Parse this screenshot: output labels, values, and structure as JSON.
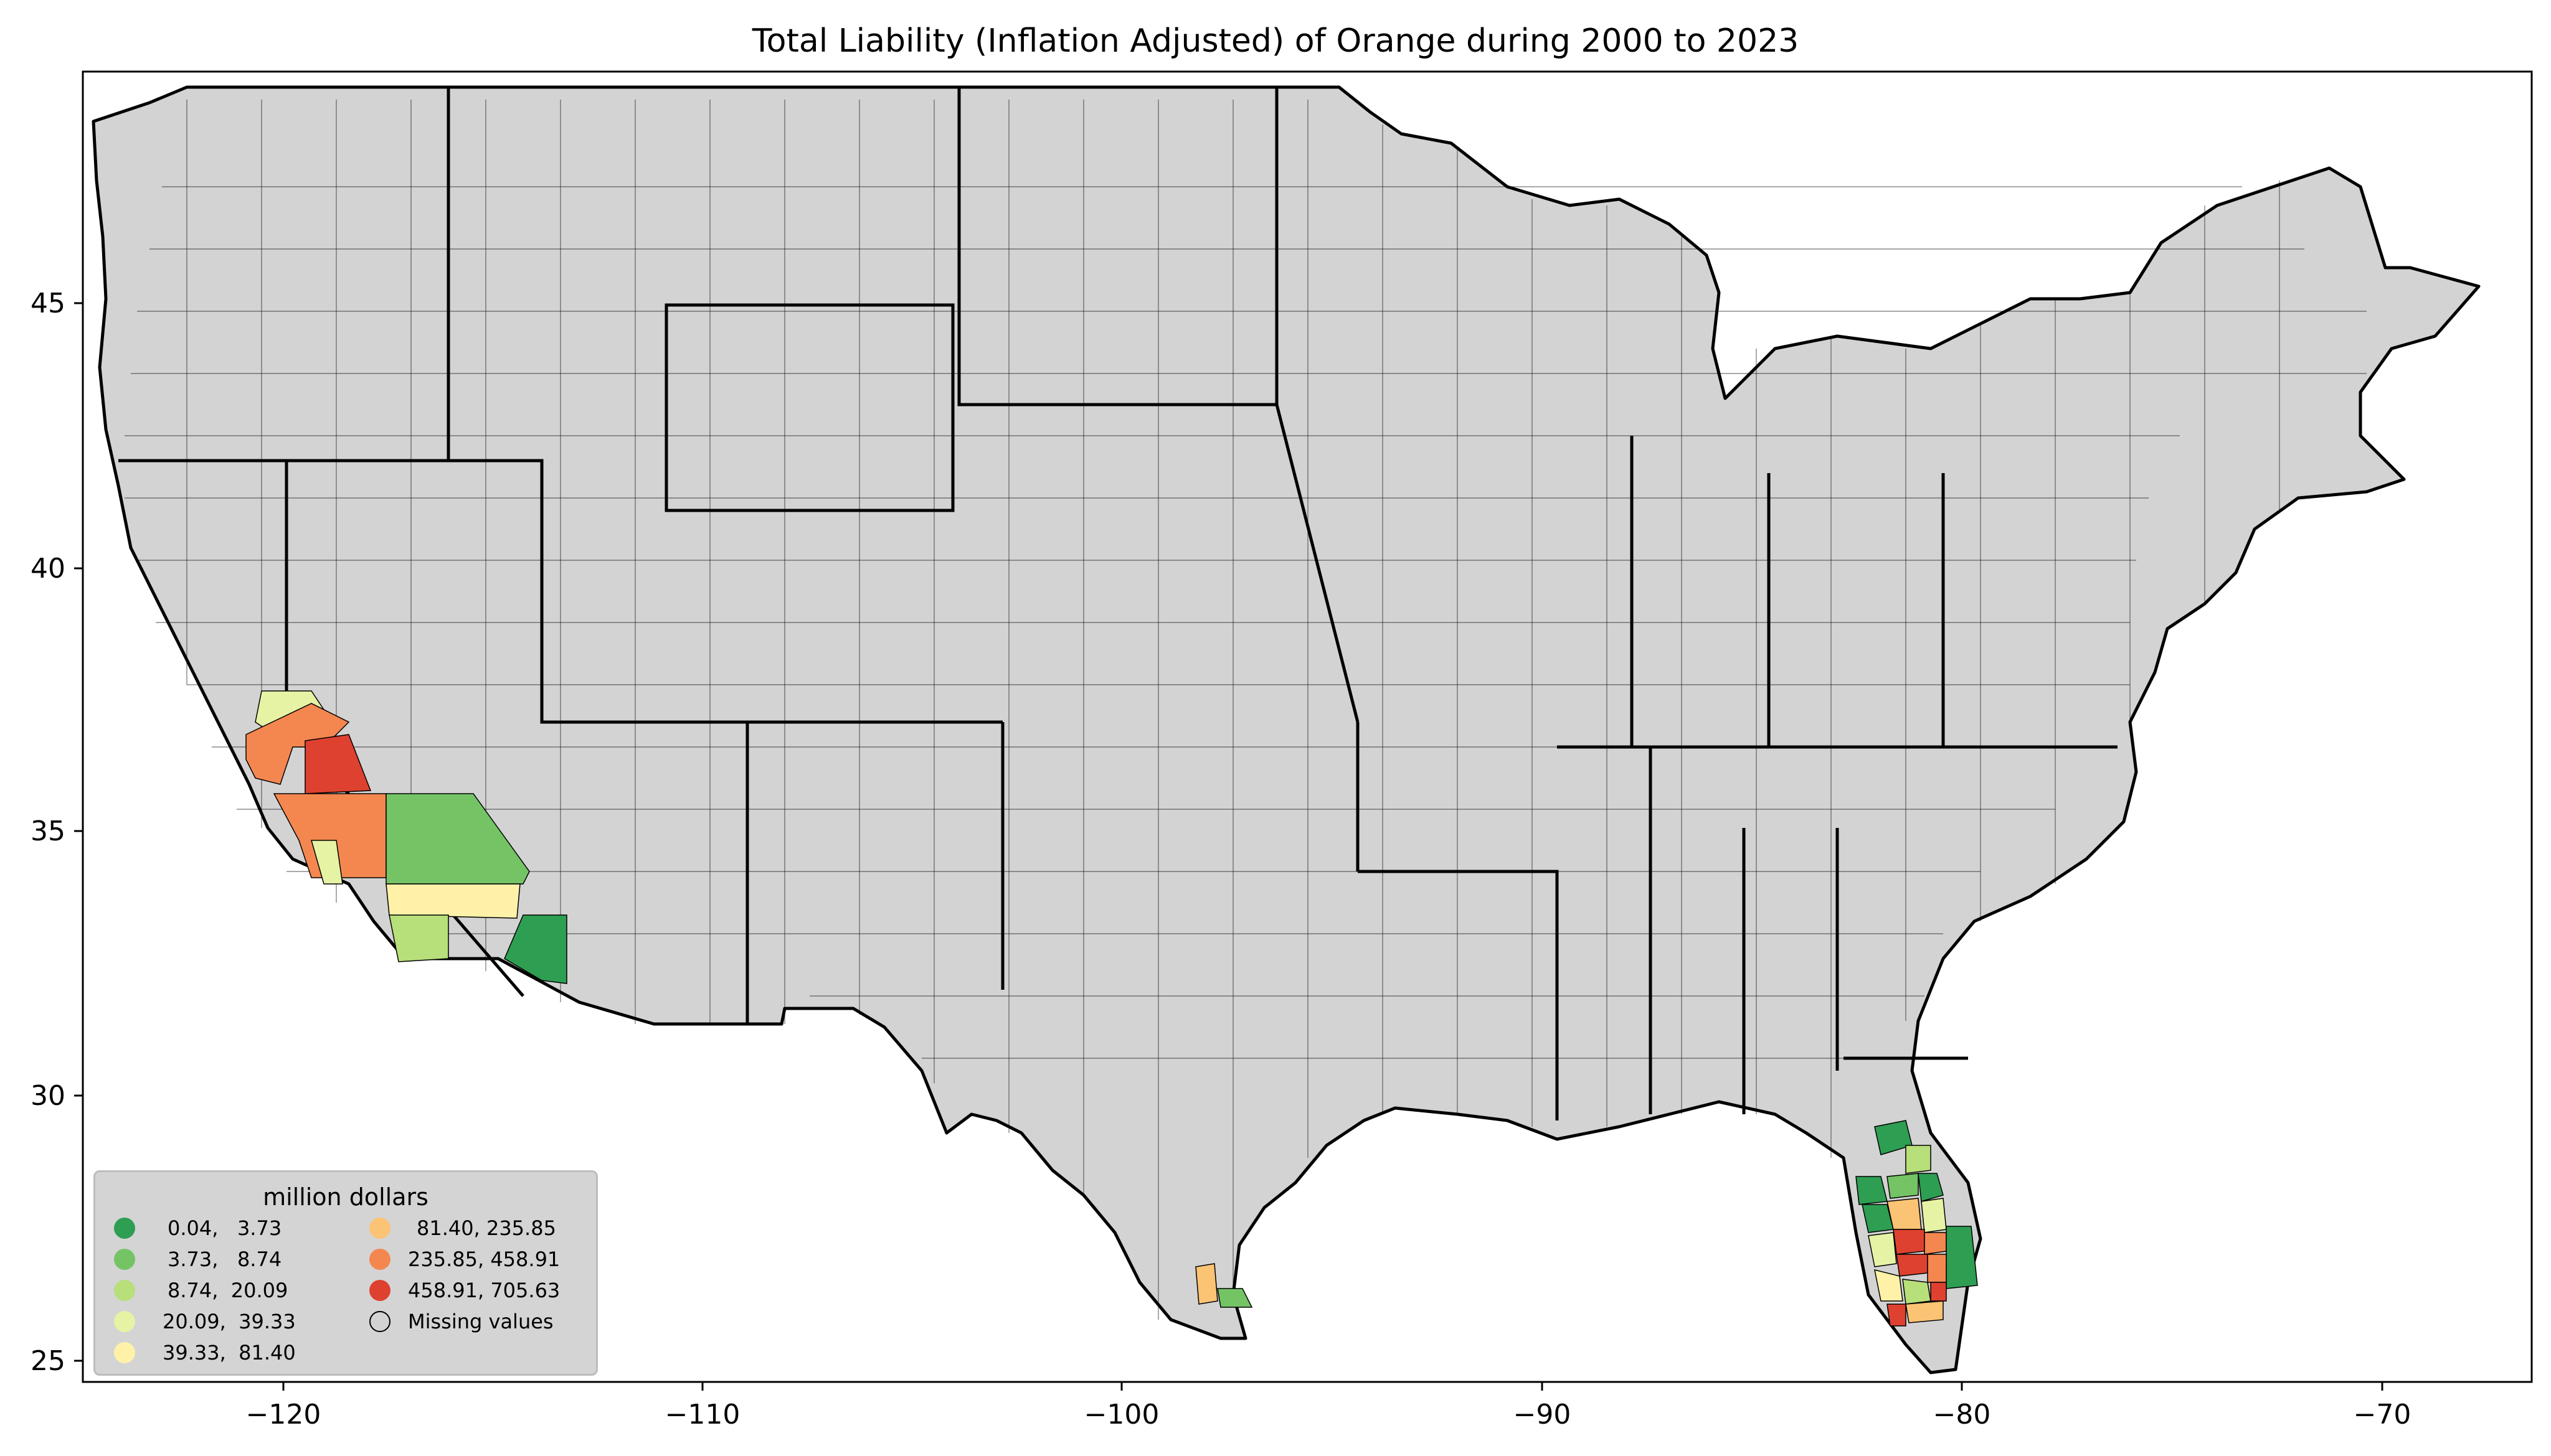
{
  "title": "Total Liability  (Inflation Adjusted) of Orange during 2000 to 2023",
  "axes": {
    "x_ticks": [
      "−120",
      "−110",
      "−100",
      "−90",
      "−80",
      "−70"
    ],
    "y_ticks": [
      "45",
      "40",
      "35",
      "30",
      "25"
    ]
  },
  "legend": {
    "title": "million dollars",
    "items": [
      {
        "label": "0.04,   3.73",
        "color": "#2e9e52"
      },
      {
        "label": "3.73,   8.74",
        "color": "#74c466"
      },
      {
        "label": "8.74,  20.09",
        "color": "#b7df7a"
      },
      {
        "label": "20.09,  39.33",
        "color": "#e6f3a4"
      },
      {
        "label": "39.33,  81.40",
        "color": "#fff2a8"
      },
      {
        "label": "81.40, 235.85",
        "color": "#fbc374"
      },
      {
        "label": "235.85, 458.91",
        "color": "#f4874f"
      },
      {
        "label": "458.91, 705.63",
        "color": "#de4130"
      },
      {
        "label": "Missing values",
        "color": "#d3d3d3"
      }
    ]
  },
  "colors": {
    "missing": "#d3d3d3",
    "land_border": "#000000",
    "background": "#ffffff"
  }
}
